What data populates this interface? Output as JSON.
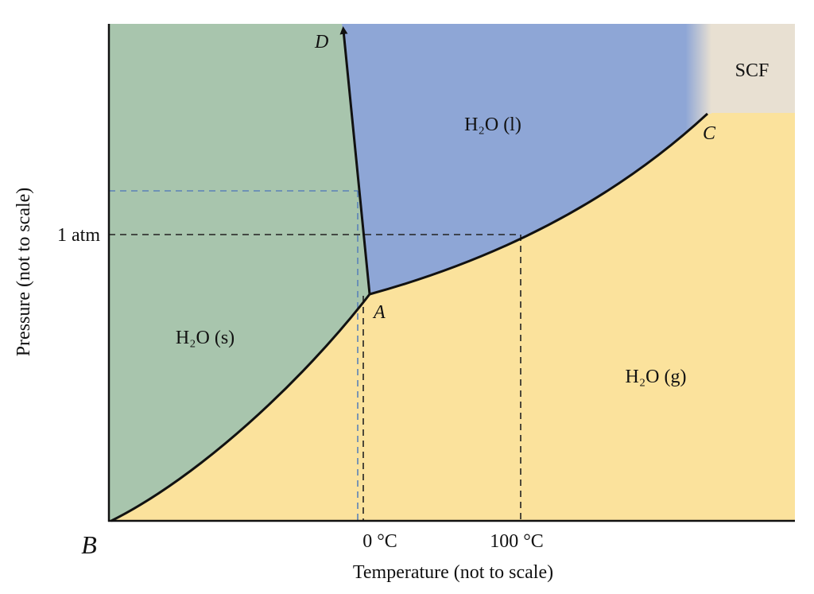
{
  "regions": {
    "solid": "H₂O (s)",
    "liquid": "H₂O (l)",
    "gas": "H₂O (g)",
    "supercritical": "SCF"
  },
  "points": {
    "A": "A",
    "B": "B",
    "C": "C",
    "D": "D"
  },
  "axes": {
    "x_label": "Temperature (not to scale)",
    "y_label": "Pressure (not to scale)",
    "x_ticks": [
      "0 °C",
      "100 °C"
    ],
    "y_ticks": [
      "1 atm"
    ]
  }
}
